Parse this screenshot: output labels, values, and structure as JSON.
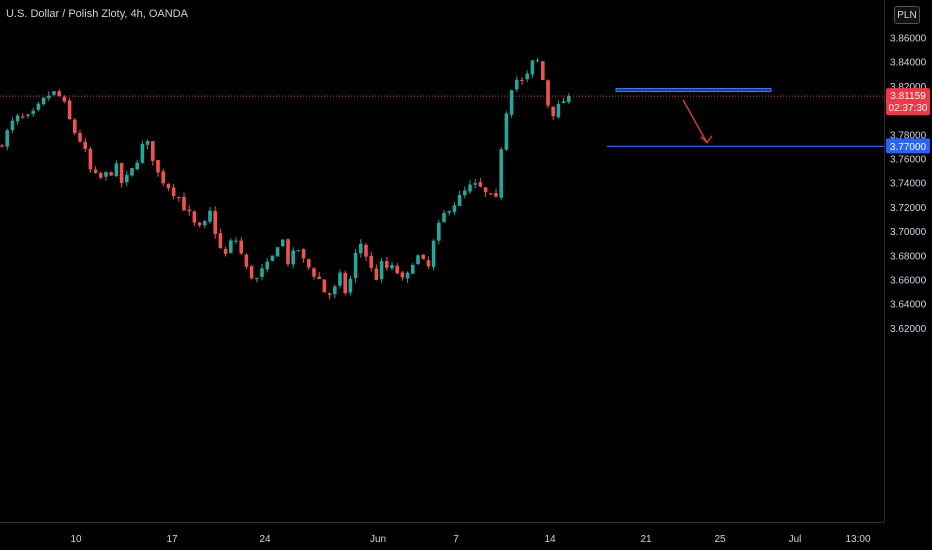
{
  "header": {
    "title": "U.S. Dollar / Polish Zloty, 4h, OANDA",
    "currency": "PLN"
  },
  "price_tags": {
    "current_price": "3.81159",
    "countdown": "02:37:30",
    "level_price": "3.77000"
  },
  "colors": {
    "up": "#26a69a",
    "down": "#ef5350",
    "current": "#f23645",
    "level": "#2962ff",
    "zone": "#1e4fb8",
    "arrow": "#e53935",
    "axis_text": "#d1d4dc"
  },
  "chart_data": {
    "type": "candlestick",
    "title": "U.S. Dollar / Polish Zloty, 4h, OANDA",
    "ylim": [
      3.61,
      3.87
    ],
    "y_ticks": [
      "3.86000",
      "3.84000",
      "3.82000",
      "3.80000",
      "3.78000",
      "3.76000",
      "3.74000",
      "3.72000",
      "3.70000",
      "3.68000",
      "3.66000",
      "3.64000",
      "3.62000"
    ],
    "x_ticks": [
      "10",
      "17",
      "24",
      "Jun",
      "7",
      "14",
      "21",
      "25",
      "Jul",
      "13:00"
    ],
    "current_price": 3.81159,
    "horizontal_level": 3.77,
    "resistance_zone": [
      3.8153,
      3.8178
    ],
    "arrow": {
      "from": 3.8085,
      "to": 3.778,
      "direction": "down"
    },
    "price_path": [
      [
        0,
        3.77
      ],
      [
        3,
        3.793
      ],
      [
        6,
        3.793
      ],
      [
        8,
        3.805
      ],
      [
        10,
        3.815
      ],
      [
        12,
        3.81
      ],
      [
        14,
        3.785
      ],
      [
        16,
        3.772
      ],
      [
        17.5,
        3.75
      ],
      [
        19,
        3.742
      ],
      [
        21,
        3.748
      ],
      [
        22.5,
        3.752
      ],
      [
        23.5,
        3.74
      ],
      [
        25,
        3.745
      ],
      [
        26,
        3.755
      ],
      [
        27.5,
        3.77
      ],
      [
        29,
        3.772
      ],
      [
        30,
        3.75
      ],
      [
        31.5,
        3.742
      ],
      [
        33,
        3.735
      ],
      [
        34.5,
        3.728
      ],
      [
        35.5,
        3.72
      ],
      [
        37,
        3.71
      ],
      [
        38,
        3.7
      ],
      [
        39.5,
        3.705
      ],
      [
        40.5,
        3.715
      ],
      [
        41.5,
        3.7
      ],
      [
        42.5,
        3.685
      ],
      [
        43.5,
        3.68
      ],
      [
        45,
        3.695
      ],
      [
        46,
        3.69
      ],
      [
        47,
        3.672
      ],
      [
        48,
        3.665
      ],
      [
        49.5,
        3.66
      ],
      [
        51,
        3.67
      ],
      [
        52,
        3.672
      ],
      [
        53.5,
        3.69
      ],
      [
        54.5,
        3.692
      ],
      [
        55.5,
        3.675
      ],
      [
        56.5,
        3.68
      ],
      [
        57.5,
        3.685
      ],
      [
        58.5,
        3.675
      ],
      [
        59.5,
        3.67
      ],
      [
        60.5,
        3.665
      ],
      [
        61.5,
        3.66
      ],
      [
        62.5,
        3.65
      ],
      [
        63.5,
        3.648
      ],
      [
        64.5,
        3.652
      ],
      [
        65.5,
        3.662
      ],
      [
        66.5,
        3.65
      ],
      [
        67.5,
        3.66
      ],
      [
        68.5,
        3.68
      ],
      [
        69.5,
        3.69
      ],
      [
        70.5,
        3.68
      ],
      [
        71.5,
        3.668
      ],
      [
        72.5,
        3.662
      ],
      [
        73.5,
        3.672
      ],
      [
        75,
        3.668
      ],
      [
        76,
        3.67
      ],
      [
        77,
        3.662
      ],
      [
        78,
        3.655
      ],
      [
        79,
        3.67
      ],
      [
        80,
        3.682
      ],
      [
        81,
        3.675
      ],
      [
        82.5,
        3.67
      ],
      [
        83.5,
        3.69
      ],
      [
        85,
        3.71
      ],
      [
        86.5,
        3.72
      ],
      [
        88,
        3.725
      ],
      [
        89.5,
        3.732
      ],
      [
        91,
        3.738
      ],
      [
        92.5,
        3.735
      ],
      [
        94,
        3.728
      ],
      [
        95.5,
        3.725
      ],
      [
        96.5,
        3.77
      ],
      [
        97.5,
        3.8
      ],
      [
        98.5,
        3.82
      ],
      [
        100,
        3.828
      ],
      [
        101,
        3.818
      ],
      [
        102,
        3.838
      ],
      [
        103.5,
        3.84
      ],
      [
        104.5,
        3.825
      ],
      [
        105.5,
        3.805
      ],
      [
        106.5,
        3.798
      ],
      [
        107.5,
        3.802
      ],
      [
        108.5,
        3.808
      ],
      [
        109,
        3.811
      ]
    ]
  }
}
